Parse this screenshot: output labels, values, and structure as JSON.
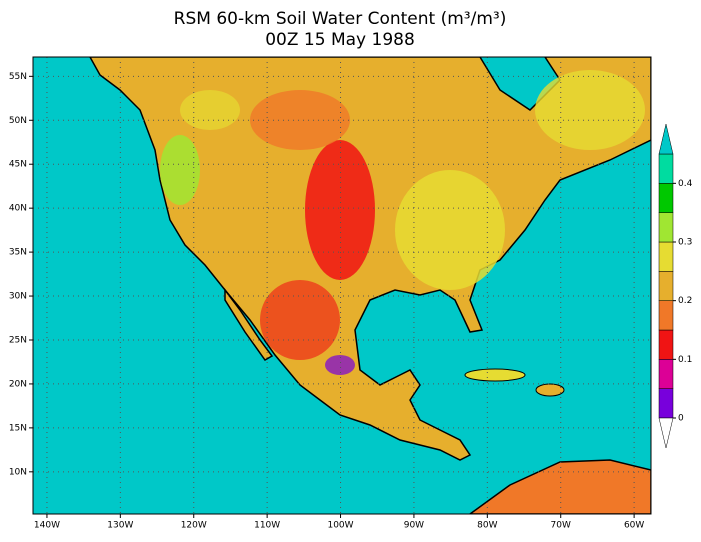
{
  "chart_data": {
    "type": "map",
    "title": "RSM 60-km Soil Water Content (m³/m³)",
    "subtitle": "00Z 15 May 1988",
    "xlim": [
      -141.9,
      -57.7
    ],
    "xticks": [
      {
        "value": -140,
        "label": "140W"
      },
      {
        "value": -130,
        "label": "130W"
      },
      {
        "value": -120,
        "label": "120W"
      },
      {
        "value": -110,
        "label": "110W"
      },
      {
        "value": -100,
        "label": "100W"
      },
      {
        "value": -90,
        "label": "90W"
      },
      {
        "value": -80,
        "label": "80W"
      },
      {
        "value": -70,
        "label": "70W"
      },
      {
        "value": -60,
        "label": "60W"
      }
    ],
    "ylim": [
      5.2,
      57.2
    ],
    "yticks": [
      {
        "value": 10,
        "label": "10N"
      },
      {
        "value": 15,
        "label": "15N"
      },
      {
        "value": 20,
        "label": "20N"
      },
      {
        "value": 25,
        "label": "25N"
      },
      {
        "value": 30,
        "label": "30N"
      },
      {
        "value": 35,
        "label": "35N"
      },
      {
        "value": 40,
        "label": "40N"
      },
      {
        "value": 45,
        "label": "45N"
      },
      {
        "value": 50,
        "label": "50N"
      },
      {
        "value": 55,
        "label": "55N"
      }
    ],
    "grid": true,
    "colorbar": {
      "lim": [
        0,
        0.45
      ],
      "ticks": [
        0,
        0.1,
        0.2,
        0.3,
        0.4
      ],
      "colors": [
        "#7800dc",
        "#dc0096",
        "#f01414",
        "#f07828",
        "#e6af2d",
        "#e6dc32",
        "#a0e632",
        "#00c800",
        "#00dca0"
      ],
      "under": "#ffffff",
      "over": "#00c8c8"
    }
  }
}
